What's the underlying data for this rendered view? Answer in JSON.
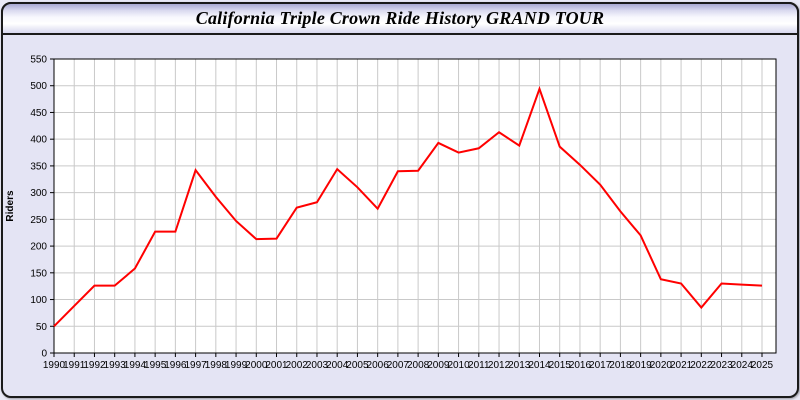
{
  "header": {
    "title": "California Triple Crown Ride History GRAND TOUR"
  },
  "colors": {
    "line": "#ff0000",
    "grid": "#c9c9c9",
    "plot_bg": "#ffffff",
    "panel_bg": "#e4e4f4",
    "axis": "#000000"
  },
  "chart_data": {
    "type": "line",
    "title": "California Triple Crown Ride History GRAND TOUR",
    "xlabel": "",
    "ylabel": "Riders",
    "ylim": [
      0,
      550
    ],
    "ytick_step": 50,
    "grid": true,
    "legend": "none",
    "x": [
      1990,
      1991,
      1992,
      1993,
      1994,
      1995,
      1996,
      1997,
      1998,
      1999,
      2000,
      2001,
      2002,
      2003,
      2004,
      2005,
      2006,
      2007,
      2008,
      2009,
      2010,
      2011,
      2012,
      2013,
      2014,
      2015,
      2016,
      2017,
      2018,
      2019,
      2020,
      2021,
      2022,
      2023,
      2024,
      2025
    ],
    "series": [
      {
        "name": "Riders",
        "color": "#ff0000",
        "values": [
          50,
          88,
          126,
          126,
          158,
          227,
          227,
          342,
          292,
          247,
          213,
          214,
          272,
          282,
          344,
          310,
          270,
          340,
          341,
          393,
          375,
          383,
          413,
          388,
          494,
          386,
          352,
          315,
          265,
          220,
          138,
          130,
          85,
          130,
          128,
          126
        ]
      }
    ]
  }
}
